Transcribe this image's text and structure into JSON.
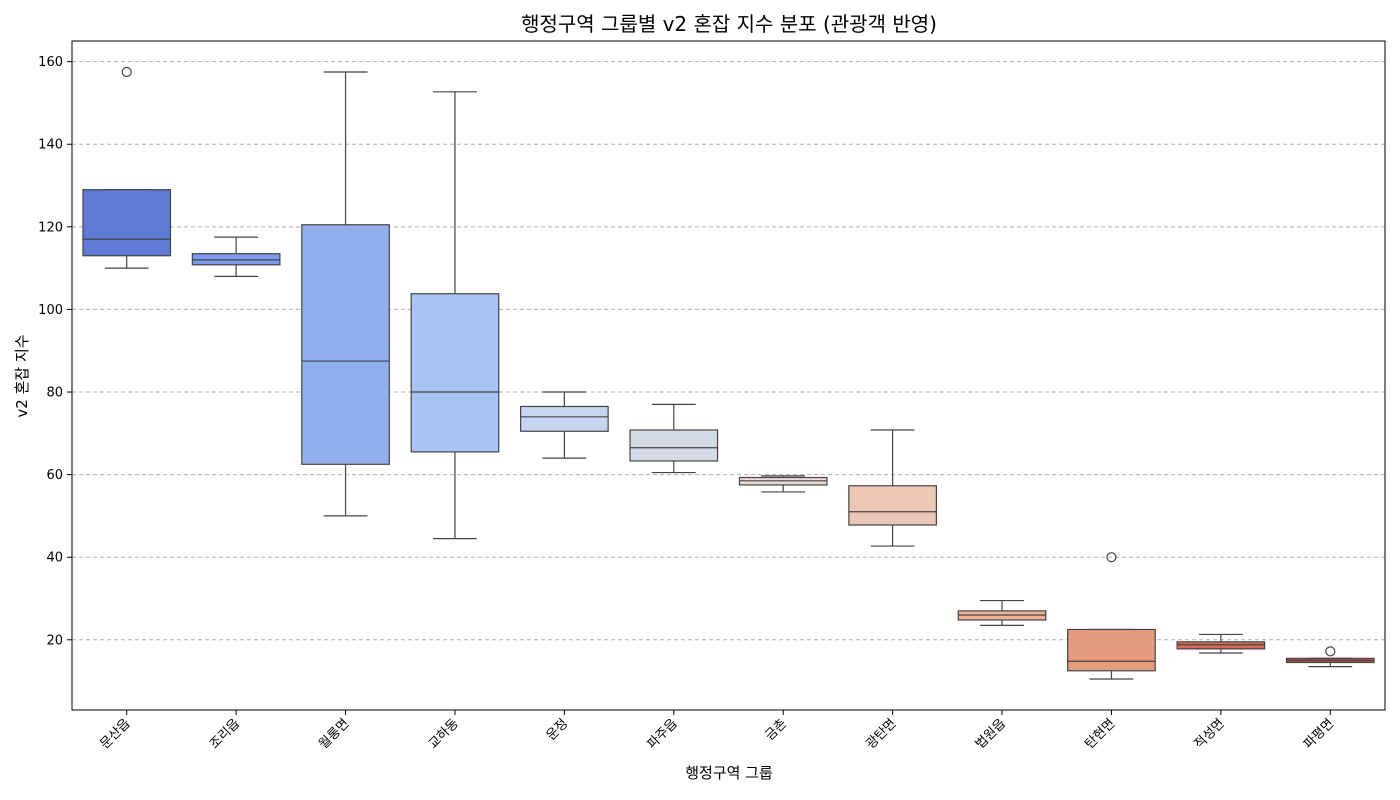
{
  "chart_data": {
    "type": "box",
    "title": "행정구역 그룹별 v2 혼잡 지수 분포 (관광객 반영)",
    "xlabel": "행정구역 그룹",
    "ylabel": "v2 혼잡 지수",
    "ylim": [
      3,
      165
    ],
    "yticks": [
      20,
      40,
      60,
      80,
      100,
      120,
      140,
      160
    ],
    "grid": "y-dashed",
    "categories": [
      "문산읍",
      "조리읍",
      "월롱면",
      "교하동",
      "운정",
      "파주읍",
      "금촌",
      "광탄면",
      "법원읍",
      "탄현면",
      "적성면",
      "파평면"
    ],
    "boxes": [
      {
        "min": 110,
        "q1": 113,
        "median": 117,
        "q3": 129,
        "max": 129,
        "outliers": [
          157.5
        ],
        "color": "#5f7bd5"
      },
      {
        "min": 108,
        "q1": 110.8,
        "median": 112,
        "q3": 113.5,
        "max": 117.5,
        "outliers": [],
        "color": "#7b9cec"
      },
      {
        "min": 50,
        "q1": 62.5,
        "median": 87.5,
        "q3": 120.5,
        "max": 157.5,
        "outliers": [],
        "color": "#93b0ee"
      },
      {
        "min": 44.5,
        "q1": 65.5,
        "median": 80,
        "q3": 103.8,
        "max": 152.7,
        "outliers": [],
        "color": "#abc4f6"
      },
      {
        "min": 64,
        "q1": 70.5,
        "median": 74,
        "q3": 76.5,
        "max": 80,
        "outliers": [],
        "color": "#c6d5f2"
      },
      {
        "min": 60.5,
        "q1": 63.3,
        "median": 66.5,
        "q3": 70.8,
        "max": 77,
        "outliers": [],
        "color": "#d5dbe6"
      },
      {
        "min": 55.8,
        "q1": 57.5,
        "median": 58.5,
        "q3": 59.3,
        "max": 59.7,
        "outliers": [],
        "color": "#e8dcd6"
      },
      {
        "min": 42.7,
        "q1": 47.8,
        "median": 51,
        "q3": 57.3,
        "max": 70.8,
        "outliers": [],
        "color": "#ecc7b6"
      },
      {
        "min": 23.5,
        "q1": 24.8,
        "median": 26,
        "q3": 27,
        "max": 29.5,
        "outliers": [],
        "color": "#f1b497"
      },
      {
        "min": 10.5,
        "q1": 12.5,
        "median": 14.8,
        "q3": 22.5,
        "max": 22.5,
        "outliers": [
          40
        ],
        "color": "#e59c7e"
      },
      {
        "min": 16.8,
        "q1": 17.8,
        "median": 18.8,
        "q3": 19.5,
        "max": 21.3,
        "outliers": [],
        "color": "#d46b55"
      },
      {
        "min": 13.5,
        "q1": 14.5,
        "median": 15,
        "q3": 15.5,
        "max": 15.5,
        "outliers": [
          17.2
        ],
        "color": "#c44b40"
      }
    ]
  }
}
